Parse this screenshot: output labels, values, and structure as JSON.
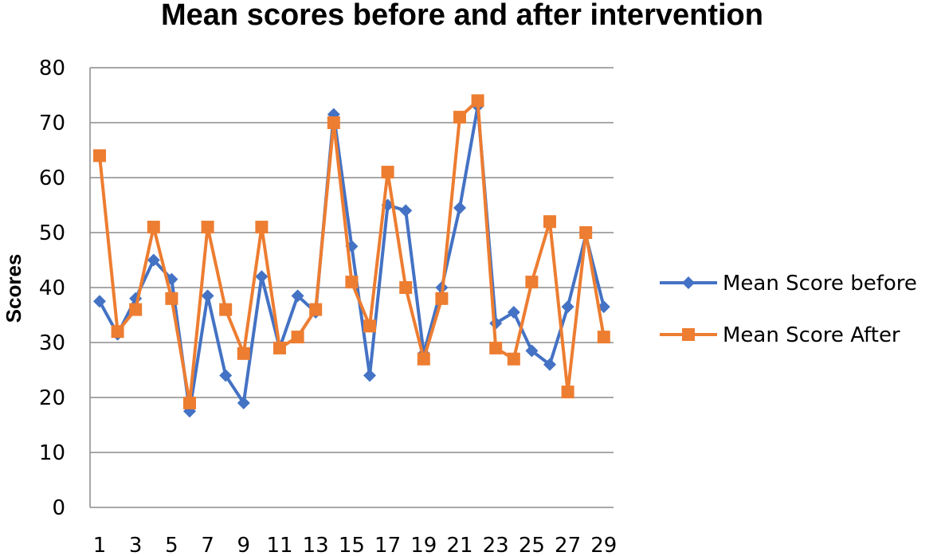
{
  "colors": {
    "before": "#4472C4",
    "after": "#ED7D31",
    "grid": "#8c8c8c"
  },
  "chart_data": {
    "type": "line",
    "title": "Mean scores before and after intervention",
    "xlabel": "",
    "ylabel": "Scores",
    "ylim": [
      0,
      80
    ],
    "yticks": [
      0,
      10,
      20,
      30,
      40,
      50,
      60,
      70,
      80
    ],
    "x": [
      1,
      2,
      3,
      4,
      5,
      6,
      7,
      8,
      9,
      10,
      11,
      12,
      13,
      14,
      15,
      16,
      17,
      18,
      19,
      20,
      21,
      22,
      23,
      24,
      25,
      26,
      27,
      28,
      29
    ],
    "xtick_labels": [
      "1",
      "3",
      "5",
      "7",
      "9",
      "11",
      "13",
      "15",
      "17",
      "19",
      "21",
      "23",
      "25",
      "27",
      "29"
    ],
    "grid": true,
    "legend_position": "right",
    "series": [
      {
        "name": "Mean Score before",
        "marker": "diamond",
        "values": [
          37.5,
          31.5,
          38,
          45,
          41.5,
          17.5,
          38.5,
          24,
          19,
          42,
          29,
          38.5,
          35.5,
          71.5,
          47.5,
          24,
          55,
          54,
          28,
          40,
          54.5,
          73,
          33.5,
          35.5,
          28.5,
          26,
          36.5,
          49.5,
          36.5
        ]
      },
      {
        "name": "Mean Score After",
        "marker": "square",
        "values": [
          64,
          32,
          36,
          51,
          38,
          19,
          51,
          36,
          28,
          51,
          29,
          31,
          36,
          70,
          41,
          33,
          61,
          40,
          27,
          38,
          71,
          74,
          29,
          27,
          41,
          52,
          21,
          50,
          31
        ]
      }
    ]
  }
}
